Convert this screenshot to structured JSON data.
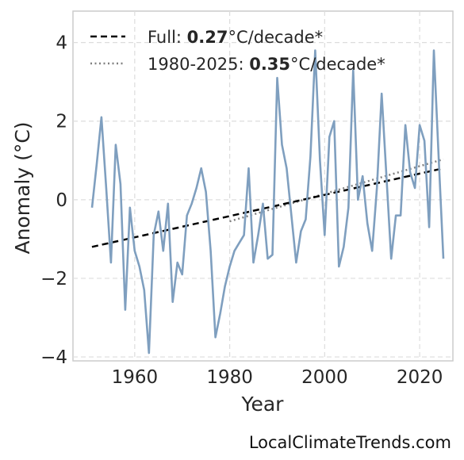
{
  "chart_data": {
    "type": "line",
    "xlabel": "Year",
    "ylabel": "Anomaly (°C)",
    "xlim": [
      1947,
      2027
    ],
    "ylim": [
      -4.1,
      4.8
    ],
    "xticks": [
      1960,
      1980,
      2000,
      2020
    ],
    "yticks": [
      -4,
      -2,
      0,
      2,
      4
    ],
    "ytick_labels": [
      "−4",
      "−2",
      "0",
      "2",
      "4"
    ],
    "grid": true,
    "legend_position": "top-left",
    "colors": {
      "series": "#7f9fbf",
      "full_trend": "#000000",
      "recent_trend": "#808080"
    },
    "series": [
      {
        "x": [
          1951,
          1952,
          1953,
          1954,
          1955,
          1956,
          1957,
          1958,
          1959,
          1960,
          1961,
          1962,
          1963,
          1964,
          1965,
          1966,
          1967,
          1968,
          1969,
          1970,
          1971,
          1972,
          1973,
          1974,
          1975,
          1976,
          1977,
          1978,
          1979,
          1980,
          1981,
          1982,
          1983,
          1984,
          1985,
          1986,
          1987,
          1988,
          1989,
          1990,
          1991,
          1992,
          1993,
          1994,
          1995,
          1996,
          1997,
          1998,
          1999,
          2000,
          2001,
          2002,
          2003,
          2004,
          2005,
          2006,
          2007,
          2008,
          2009,
          2010,
          2011,
          2012,
          2013,
          2014,
          2015,
          2016,
          2017,
          2018,
          2019,
          2020,
          2021,
          2022,
          2023,
          2024,
          2025
        ],
        "y": [
          -0.2,
          0.9,
          2.1,
          0.3,
          -1.6,
          1.4,
          0.4,
          -2.8,
          -0.2,
          -1.3,
          -1.7,
          -2.3,
          -3.9,
          -0.9,
          -0.3,
          -1.3,
          -0.1,
          -2.6,
          -1.6,
          -1.9,
          -0.4,
          -0.1,
          0.3,
          0.8,
          0.2,
          -1.3,
          -3.5,
          -2.9,
          -2.2,
          -1.7,
          -1.3,
          -1.1,
          -0.9,
          0.8,
          -1.6,
          -0.9,
          -0.1,
          -1.5,
          -1.4,
          3.1,
          1.4,
          0.8,
          -0.4,
          -1.6,
          -0.8,
          -0.5,
          1.1,
          3.8,
          1.0,
          -0.9,
          1.6,
          2.0,
          -1.7,
          -1.2,
          -0.2,
          3.3,
          0.0,
          0.6,
          -0.6,
          -1.3,
          0.3,
          2.7,
          0.6,
          -1.5,
          -0.4,
          -0.4,
          1.9,
          0.7,
          0.3,
          1.9,
          1.5,
          -0.7,
          3.8,
          1.1,
          -1.5
        ]
      }
    ],
    "trends": [
      {
        "label_prefix": "Full: ",
        "label_value": "0.27",
        "label_suffix": "°C/decade*",
        "x": [
          1951,
          2025
        ],
        "y": [
          -1.2,
          0.8
        ]
      },
      {
        "label_prefix": "1980-2025: ",
        "label_value": "0.35",
        "label_suffix": "°C/decade*",
        "x": [
          1980,
          2025
        ],
        "y": [
          -0.55,
          1.03
        ]
      }
    ]
  },
  "watermark": "LocalClimateTrends.com"
}
